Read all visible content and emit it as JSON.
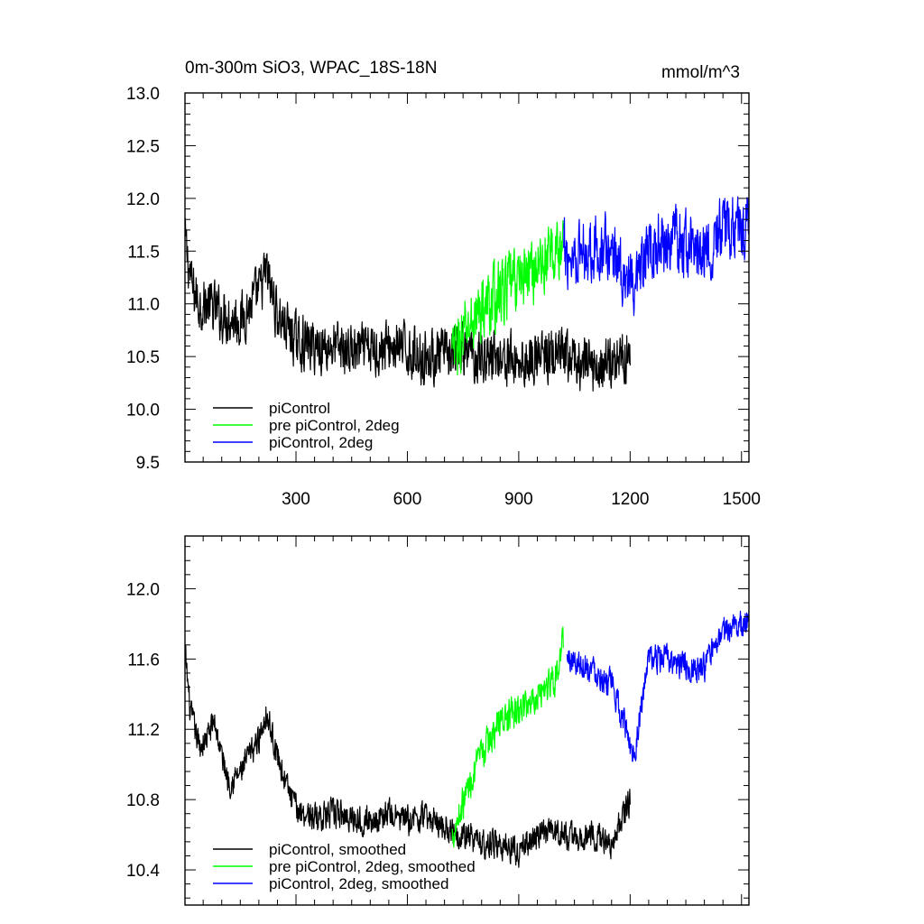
{
  "figure": {
    "title_left": "0m-300m SiO3, WPAC_18S-18N",
    "title_right": "mmol/m^3"
  },
  "chart_data": [
    {
      "type": "line",
      "panel": "top",
      "xlim": [
        1,
        1520
      ],
      "ylim": [
        9.5,
        13.0
      ],
      "x_ticks": [
        300,
        600,
        900,
        1200,
        1500
      ],
      "x_tick_labels": [
        "300",
        "600",
        "900",
        "1200",
        "1500"
      ],
      "y_ticks": [
        9.5,
        10.0,
        10.5,
        11.0,
        11.5,
        12.0,
        12.5,
        13.0
      ],
      "y_tick_labels": [
        "9.5",
        "10.0",
        "10.5",
        "11.0",
        "11.5",
        "12.0",
        "12.5",
        "13.0"
      ],
      "grid": false,
      "legend_position": "bottom-left",
      "series": [
        {
          "name": "piControl",
          "color": "#000000",
          "x_range": [
            1,
            1200
          ],
          "x": [
            1,
            20,
            40,
            60,
            80,
            100,
            150,
            200,
            220,
            250,
            300,
            350,
            400,
            450,
            500,
            550,
            600,
            650,
            700,
            750,
            800,
            850,
            900,
            950,
            1000,
            1050,
            1100,
            1150,
            1200
          ],
          "y": [
            11.6,
            11.15,
            11.0,
            11.0,
            10.95,
            10.9,
            10.85,
            11.1,
            11.3,
            10.9,
            10.65,
            10.6,
            10.6,
            10.55,
            10.55,
            10.6,
            10.55,
            10.5,
            10.5,
            10.55,
            10.5,
            10.5,
            10.45,
            10.5,
            10.5,
            10.45,
            10.4,
            10.45,
            10.55
          ],
          "noise_amplitude": 0.34
        },
        {
          "name": "pre piControl, 2deg",
          "color": "#00ff00",
          "x_range": [
            720,
            1020
          ],
          "x": [
            720,
            760,
            800,
            850,
            900,
            950,
            1000,
            1020
          ],
          "y": [
            10.5,
            10.75,
            10.95,
            11.1,
            11.25,
            11.35,
            11.5,
            11.5
          ],
          "noise_amplitude": 0.42
        },
        {
          "name": "piControl, 2deg",
          "color": "#0000ff",
          "x_range": [
            1020,
            1520
          ],
          "x": [
            1020,
            1100,
            1150,
            1200,
            1210,
            1250,
            1300,
            1350,
            1400,
            1450,
            1500,
            1520
          ],
          "y": [
            11.45,
            11.55,
            11.5,
            11.2,
            11.0,
            11.55,
            11.6,
            11.55,
            11.5,
            11.7,
            11.75,
            11.8
          ],
          "noise_amplitude": 0.42
        }
      ]
    },
    {
      "type": "line",
      "panel": "bottom",
      "xlim": [
        1,
        1520
      ],
      "ylim": [
        10.2,
        12.3
      ],
      "x_ticks": [
        300,
        600,
        900,
        1200,
        1500
      ],
      "y_ticks": [
        10.4,
        10.8,
        11.2,
        11.6,
        12.0
      ],
      "y_tick_labels": [
        "10.4",
        "10.8",
        "11.2",
        "11.6",
        "12.0"
      ],
      "grid": false,
      "legend_position": "bottom-left",
      "series": [
        {
          "name": "piControl, smoothed",
          "color": "#000000",
          "x_range": [
            1,
            1200
          ],
          "x": [
            1,
            15,
            40,
            60,
            80,
            100,
            120,
            150,
            200,
            220,
            250,
            280,
            300,
            350,
            400,
            450,
            500,
            550,
            600,
            650,
            700,
            750,
            800,
            850,
            900,
            950,
            1000,
            1050,
            1100,
            1150,
            1200
          ],
          "y": [
            11.65,
            11.3,
            11.1,
            11.15,
            11.25,
            11.05,
            10.9,
            10.95,
            11.15,
            11.3,
            11.05,
            10.85,
            10.75,
            10.7,
            10.72,
            10.7,
            10.68,
            10.72,
            10.68,
            10.7,
            10.65,
            10.6,
            10.55,
            10.55,
            10.5,
            10.6,
            10.62,
            10.58,
            10.6,
            10.55,
            10.8
          ],
          "noise_amplitude": 0.11
        },
        {
          "name": "pre piControl, 2deg, smoothed",
          "color": "#00ff00",
          "x_range": [
            720,
            1020
          ],
          "x": [
            720,
            760,
            800,
            850,
            900,
            950,
            1000,
            1020
          ],
          "y": [
            10.6,
            10.85,
            11.05,
            11.25,
            11.3,
            11.4,
            11.5,
            11.7
          ],
          "noise_amplitude": 0.13
        },
        {
          "name": "piControl, 2deg, smoothed",
          "color": "#0000ff",
          "x_range": [
            1030,
            1520
          ],
          "x": [
            1030,
            1100,
            1150,
            1190,
            1210,
            1250,
            1300,
            1350,
            1400,
            1450,
            1500,
            1520
          ],
          "y": [
            11.6,
            11.55,
            11.45,
            11.2,
            11.05,
            11.6,
            11.6,
            11.55,
            11.55,
            11.75,
            11.8,
            11.85
          ],
          "noise_amplitude": 0.11
        }
      ]
    }
  ]
}
